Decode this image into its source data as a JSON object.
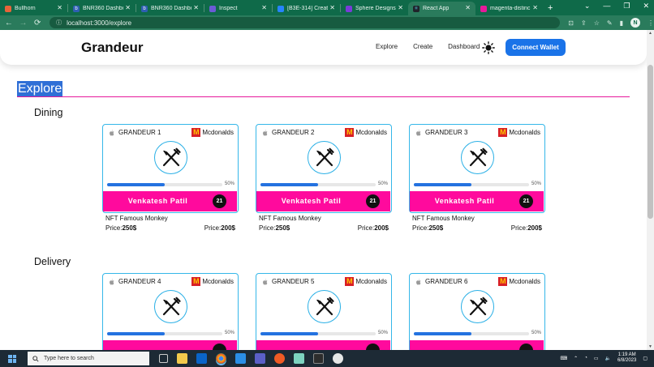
{
  "browser": {
    "tabs": [
      {
        "title": "Bullhorn",
        "favicon_color": "#e8643a"
      },
      {
        "title": "BNR360 Dashboa",
        "favicon_color": "#2f5fb3"
      },
      {
        "title": "BNR360 Dashboa",
        "favicon_color": "#2f5fb3"
      },
      {
        "title": "Inspect",
        "favicon_color": "#6b5bd6"
      },
      {
        "title": "[B3E-314] Create",
        "favicon_color": "#2684ff"
      },
      {
        "title": "Sphere Designs",
        "favicon_color": "#7a3bd8"
      },
      {
        "title": "React App",
        "favicon_color": "#61dafb",
        "active": true
      },
      {
        "title": "magenta-distinc",
        "favicon_color": "#e6199b"
      }
    ],
    "url": "localhost:3000/explore",
    "profile_initial": "N"
  },
  "navbar": {
    "brand": "Grandeur",
    "links": [
      "Explore",
      "Create",
      "Dashboard"
    ],
    "connect_label": "Connect Wallet"
  },
  "page": {
    "title": "Explore"
  },
  "colors": {
    "accent_pink": "#ff0a9d",
    "accent_blue": "#1a73e8",
    "card_border": "#35b7e9",
    "browser_green": "#0f6a49"
  },
  "sections": [
    {
      "name": "Dining",
      "cards": [
        {
          "title": "GRANDEUR 1",
          "brand": "Mcdonalds",
          "progress": 0.5,
          "progress_label": "50%",
          "owner": "Venkatesh Patil",
          "badge": "21",
          "nft": "NFT Famous Monkey",
          "price_label": "Price:",
          "price_left": "250$",
          "price_right": "200$"
        },
        {
          "title": "GRANDEUR 2",
          "brand": "Mcdonalds",
          "progress": 0.5,
          "progress_label": "50%",
          "owner": "Venkatesh Patil",
          "badge": "21",
          "nft": "NFT Famous Monkey",
          "price_label": "Price:",
          "price_left": "250$",
          "price_right": "200$"
        },
        {
          "title": "GRANDEUR 3",
          "brand": "Mcdonalds",
          "progress": 0.5,
          "progress_label": "50%",
          "owner": "Venkatesh Patil",
          "badge": "21",
          "nft": "NFT Famous Monkey",
          "price_label": "Price:",
          "price_left": "250$",
          "price_right": "200$"
        }
      ]
    },
    {
      "name": "Delivery",
      "cards": [
        {
          "title": "GRANDEUR 4",
          "brand": "Mcdonalds",
          "progress": 0.5,
          "progress_label": "50%",
          "owner": "",
          "badge": ""
        },
        {
          "title": "GRANDEUR 5",
          "brand": "Mcdonalds",
          "progress": 0.5,
          "progress_label": "50%",
          "owner": "",
          "badge": ""
        },
        {
          "title": "GRANDEUR 6",
          "brand": "Mcdonalds",
          "progress": 0.5,
          "progress_label": "50%",
          "owner": "",
          "badge": ""
        }
      ]
    }
  ],
  "taskbar": {
    "search_placeholder": "Type here to search",
    "time": "1:19 AM",
    "date": "6/8/2023"
  }
}
